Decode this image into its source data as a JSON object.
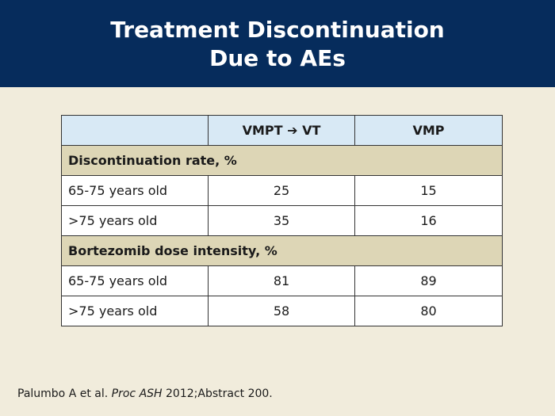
{
  "header": {
    "title_lines": [
      "Treatment Discontinuation",
      "Due to AEs"
    ]
  },
  "table": {
    "columns": [
      "VMPT ➔ VT",
      "VMP"
    ],
    "sections": [
      {
        "title": "Discontinuation rate, %",
        "rows": [
          {
            "label": "65-75 years old",
            "values": [
              25,
              15
            ]
          },
          {
            "label": ">75 years old",
            "values": [
              35,
              16
            ]
          }
        ]
      },
      {
        "title": "Bortezomib dose intensity, %",
        "rows": [
          {
            "label": "65-75 years old",
            "values": [
              81,
              89
            ]
          },
          {
            "label": ">75 years old",
            "values": [
              58,
              80
            ]
          }
        ]
      }
    ]
  },
  "citation": {
    "authors": "Palumbo A et al.",
    "journal": "Proc ASH",
    "details": "2012;Abstract 200."
  }
}
